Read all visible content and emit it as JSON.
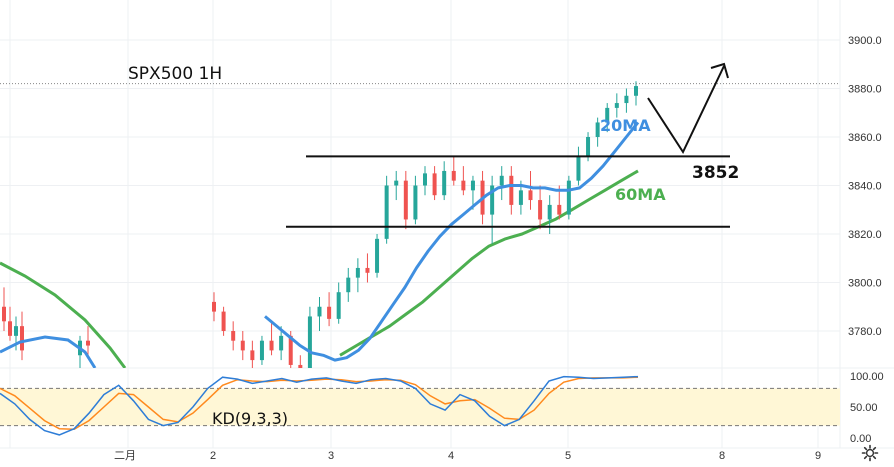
{
  "chart_data": [
    {
      "type": "candlestick",
      "title": "SPX500 1H",
      "y_ticks": [
        "3900.0",
        "3880.0",
        "3860.0",
        "3840.0",
        "3820.0",
        "3800.0",
        "3780.0"
      ],
      "y_range": [
        3765,
        3910
      ],
      "x_labels": [
        "二月",
        "2",
        "3",
        "4",
        "5",
        "8",
        "9"
      ],
      "colors": {
        "up": "#26a69a",
        "down": "#ef5350",
        "ma20": "#3f8fe0",
        "ma60": "#4caf50"
      },
      "ma20_label": "20MA",
      "ma60_label": "60MA",
      "level_label": "3852",
      "levels": [
        3852,
        3823
      ],
      "price_line": 3882,
      "candles": [
        [
          3792,
          3796,
          3784,
          3788
        ],
        [
          3788,
          3790,
          3778,
          3780
        ],
        [
          3780,
          3784,
          3772,
          3776
        ],
        [
          3776,
          3780,
          3768,
          3772
        ],
        [
          3772,
          3776,
          3764,
          3768
        ],
        [
          3768,
          3778,
          3766,
          3776
        ],
        [
          3776,
          3784,
          3770,
          3772
        ],
        [
          3772,
          3782,
          3768,
          3778
        ],
        [
          3778,
          3780,
          3762,
          3766
        ],
        [
          3766,
          3770,
          3756,
          3760
        ],
        [
          3760,
          3790,
          3758,
          3786
        ],
        [
          3786,
          3794,
          3780,
          3790
        ],
        [
          3790,
          3796,
          3782,
          3785
        ],
        [
          3785,
          3800,
          3783,
          3796
        ],
        [
          3796,
          3806,
          3792,
          3802
        ],
        [
          3802,
          3810,
          3796,
          3806
        ],
        [
          3806,
          3812,
          3800,
          3804
        ],
        [
          3804,
          3820,
          3802,
          3818
        ],
        [
          3818,
          3844,
          3816,
          3840
        ],
        [
          3840,
          3846,
          3834,
          3842
        ],
        [
          3842,
          3846,
          3822,
          3826
        ],
        [
          3826,
          3844,
          3824,
          3840
        ],
        [
          3840,
          3848,
          3836,
          3845
        ],
        [
          3845,
          3848,
          3834,
          3836
        ],
        [
          3836,
          3850,
          3834,
          3846
        ],
        [
          3846,
          3852,
          3840,
          3842
        ],
        [
          3842,
          3848,
          3836,
          3838
        ],
        [
          3838,
          3844,
          3830,
          3842
        ],
        [
          3842,
          3846,
          3824,
          3828
        ],
        [
          3828,
          3844,
          3816,
          3840
        ],
        [
          3840,
          3848,
          3834,
          3844
        ],
        [
          3844,
          3848,
          3828,
          3832
        ],
        [
          3832,
          3842,
          3828,
          3838
        ],
        [
          3838,
          3846,
          3830,
          3834
        ],
        [
          3834,
          3840,
          3822,
          3826
        ],
        [
          3826,
          3836,
          3820,
          3832
        ],
        [
          3832,
          3840,
          3826,
          3828
        ],
        [
          3828,
          3844,
          3826,
          3842
        ],
        [
          3842,
          3856,
          3840,
          3852
        ],
        [
          3852,
          3862,
          3850,
          3860
        ],
        [
          3860,
          3868,
          3856,
          3866
        ],
        [
          3866,
          3874,
          3862,
          3872
        ],
        [
          3872,
          3878,
          3868,
          3874
        ],
        [
          3874,
          3880,
          3870,
          3877
        ],
        [
          3877,
          3883,
          3873,
          3881
        ]
      ],
      "ma20": [
        3786,
        3782,
        3778,
        3774,
        3771,
        3770,
        3768,
        3769,
        3772,
        3777,
        3784,
        3791,
        3798,
        3806,
        3813,
        3819,
        3824,
        3828,
        3832,
        3836,
        3839,
        3840,
        3840,
        3839,
        3839,
        3838,
        3838,
        3839,
        3843,
        3848,
        3854,
        3860,
        3866
      ],
      "ma60": [
        3770,
        3774,
        3778,
        3782,
        3787,
        3792,
        3798,
        3804,
        3810,
        3815,
        3818,
        3820,
        3823,
        3826,
        3830,
        3834,
        3838,
        3842,
        3846
      ]
    },
    {
      "type": "line",
      "title": "KD(9,3,3)",
      "y_ticks": [
        "100.00",
        "50.00",
        "0.00"
      ],
      "guides": [
        80,
        20
      ],
      "colors": {
        "k": "#2e7dd7",
        "d": "#ff8a1e",
        "band": "#fff7d6"
      },
      "k": [
        72,
        55,
        30,
        12,
        5,
        15,
        40,
        70,
        85,
        60,
        30,
        20,
        25,
        50,
        80,
        98,
        95,
        88,
        92,
        96,
        90,
        95,
        97,
        92,
        88,
        94,
        96,
        92,
        80,
        55,
        45,
        70,
        60,
        35,
        20,
        30,
        60,
        92,
        99,
        98,
        96,
        97,
        98,
        99
      ],
      "d": [
        80,
        68,
        48,
        28,
        15,
        14,
        28,
        50,
        72,
        70,
        50,
        30,
        26,
        40,
        62,
        85,
        94,
        92,
        91,
        93,
        92,
        93,
        95,
        94,
        91,
        92,
        94,
        93,
        86,
        68,
        55,
        60,
        62,
        48,
        32,
        30,
        45,
        72,
        90,
        96,
        97,
        97,
        97,
        98
      ]
    }
  ]
}
